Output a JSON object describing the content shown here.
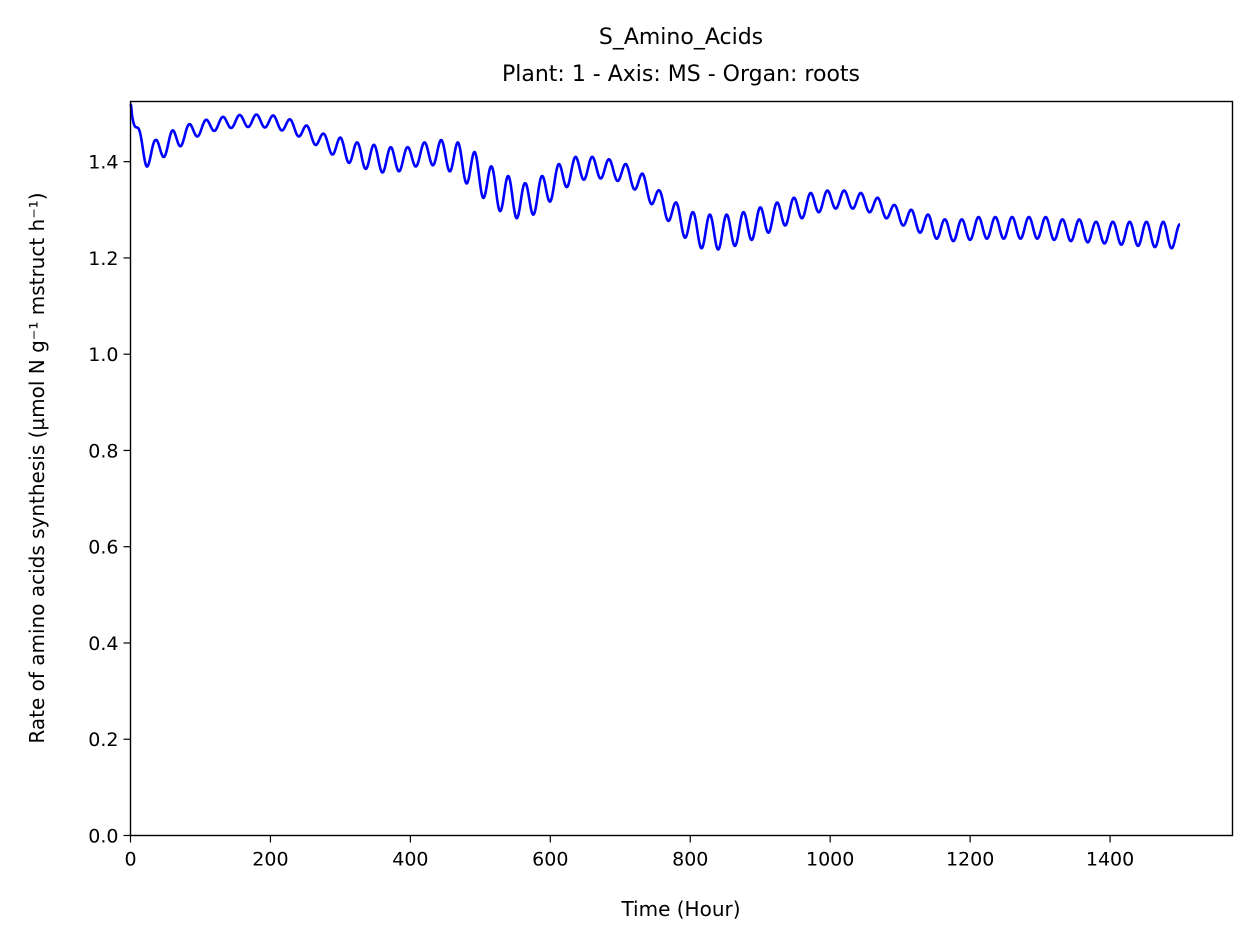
{
  "chart_data": {
    "type": "line",
    "title": "S_Amino_Acids",
    "subtitle": "Plant: 1 - Axis: MS - Organ: roots",
    "xlabel": "Time (Hour)",
    "ylabel": "Rate of amino acids synthesis (µmol N g⁻¹ mstruct h⁻¹)",
    "xlim": [
      0,
      1575
    ],
    "ylim": [
      0,
      1.525
    ],
    "xticks": [
      0,
      200,
      400,
      600,
      800,
      1000,
      1200,
      1400
    ],
    "yticks": [
      0.0,
      0.2,
      0.4,
      0.6,
      0.8,
      1.0,
      1.2,
      1.4
    ],
    "xtick_labels": [
      "0",
      "200",
      "400",
      "600",
      "800",
      "1000",
      "1200",
      "1400"
    ],
    "ytick_labels": [
      "0.0",
      "0.2",
      "0.4",
      "0.6",
      "0.8",
      "1.0",
      "1.2",
      "1.4"
    ],
    "grid": false,
    "line_color": "#0000ff",
    "x_end": 1500,
    "period_hours": 24,
    "series": [
      {
        "start_value": 1.52,
        "envelope_x": [
          12,
          36,
          60,
          84,
          108,
          132,
          156,
          180,
          204,
          228,
          252,
          276,
          300,
          324,
          348,
          372,
          396,
          420,
          444,
          468,
          492,
          516,
          540,
          564,
          588,
          612,
          636,
          660,
          684,
          708,
          732,
          756,
          780,
          804,
          828,
          852,
          876,
          900,
          924,
          948,
          972,
          996,
          1020,
          1044,
          1068,
          1092,
          1116,
          1140,
          1164,
          1188,
          1212,
          1236,
          1260,
          1284,
          1308,
          1332,
          1356,
          1380,
          1404,
          1428,
          1452,
          1476,
          1500
        ],
        "envelope_max": [
          1.45,
          1.445,
          1.465,
          1.478,
          1.487,
          1.493,
          1.497,
          1.498,
          1.496,
          1.488,
          1.475,
          1.458,
          1.45,
          1.44,
          1.435,
          1.43,
          1.43,
          1.44,
          1.445,
          1.44,
          1.42,
          1.39,
          1.37,
          1.355,
          1.37,
          1.395,
          1.41,
          1.41,
          1.405,
          1.395,
          1.375,
          1.34,
          1.315,
          1.295,
          1.29,
          1.29,
          1.295,
          1.305,
          1.315,
          1.325,
          1.335,
          1.34,
          1.34,
          1.335,
          1.325,
          1.31,
          1.3,
          1.29,
          1.28,
          1.28,
          1.285,
          1.285,
          1.285,
          1.285,
          1.285,
          1.28,
          1.28,
          1.275,
          1.275,
          1.275,
          1.275,
          1.275,
          1.27
        ],
        "envelope_min": [
          1.38,
          1.4,
          1.42,
          1.445,
          1.46,
          1.468,
          1.472,
          1.472,
          1.47,
          1.46,
          1.445,
          1.425,
          1.405,
          1.39,
          1.38,
          1.375,
          1.385,
          1.395,
          1.39,
          1.37,
          1.34,
          1.31,
          1.285,
          1.28,
          1.3,
          1.335,
          1.36,
          1.365,
          1.365,
          1.355,
          1.33,
          1.295,
          1.26,
          1.225,
          1.215,
          1.22,
          1.23,
          1.245,
          1.26,
          1.275,
          1.29,
          1.3,
          1.305,
          1.3,
          1.29,
          1.275,
          1.26,
          1.245,
          1.235,
          1.235,
          1.24,
          1.24,
          1.24,
          1.24,
          1.24,
          1.235,
          1.235,
          1.23,
          1.23,
          1.225,
          1.225,
          1.22,
          1.22
        ]
      }
    ]
  }
}
